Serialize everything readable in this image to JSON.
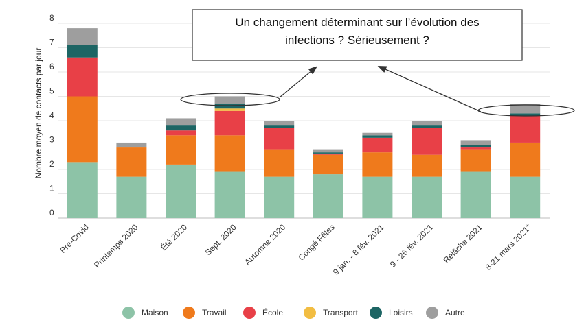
{
  "chart_data": {
    "type": "bar",
    "stacked": true,
    "ylabel": "Nombre moyen de contacts par jour",
    "xlabel": "",
    "ylim": [
      0,
      8
    ],
    "yticks": [
      0,
      1,
      2,
      3,
      4,
      5,
      6,
      7,
      8
    ],
    "grid": true,
    "legend_position": "bottom",
    "categories": [
      "Pré-Covid",
      "Printemps 2020",
      "Été 2020",
      "Sept. 2020",
      "Automne 2020",
      "Congé Fêtes",
      "9 jan. - 8 fév. 2021",
      "9 - 26 fév. 2021",
      "Relâche 2021",
      "8-21 mars 2021*"
    ],
    "series": [
      {
        "name": "Maison",
        "color": "#8dc3a7",
        "values": [
          2.3,
          1.7,
          2.2,
          1.9,
          1.7,
          1.8,
          1.7,
          1.7,
          1.9,
          1.7
        ]
      },
      {
        "name": "Travail",
        "color": "#ef7a1c",
        "values": [
          2.7,
          1.2,
          1.2,
          1.5,
          1.1,
          0.8,
          1.0,
          0.9,
          0.9,
          1.4
        ]
      },
      {
        "name": "École",
        "color": "#e84047",
        "values": [
          1.6,
          0.0,
          0.2,
          1.0,
          0.9,
          0.05,
          0.6,
          1.1,
          0.1,
          1.1
        ]
      },
      {
        "name": "Transport",
        "color": "#f2bd42",
        "values": [
          0.0,
          0.0,
          0.0,
          0.1,
          0.0,
          0.0,
          0.0,
          0.0,
          0.0,
          0.0
        ]
      },
      {
        "name": "Loisirs",
        "color": "#1d6564",
        "values": [
          0.5,
          0.0,
          0.2,
          0.2,
          0.1,
          0.05,
          0.1,
          0.1,
          0.1,
          0.1
        ]
      },
      {
        "name": "Autre",
        "color": "#9e9e9e",
        "values": [
          0.7,
          0.2,
          0.3,
          0.3,
          0.2,
          0.1,
          0.1,
          0.2,
          0.2,
          0.4
        ]
      }
    ],
    "annotations": [
      {
        "text": "Un changement déterminant sur l'évolution des infections ? Sérieusement ?",
        "highlights": [
          "Sept. 2020",
          "8-21 mars 2021*"
        ]
      }
    ]
  },
  "callout": {
    "line1": "Un changement déterminant sur l’évolution des",
    "line2": "infections ? Sérieusement ?"
  }
}
